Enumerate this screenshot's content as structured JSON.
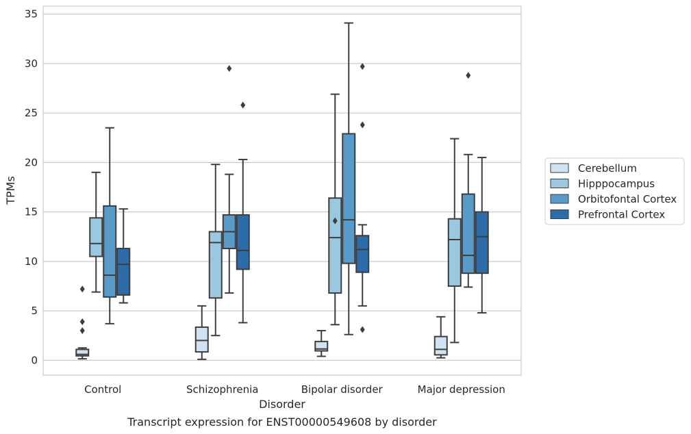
{
  "chart_data": {
    "type": "box",
    "title": "",
    "caption": "Transcript expression for ENST00000549608 by disorder",
    "xlabel": "Disorder",
    "ylabel": "TPMs",
    "ylim": [
      -1.5,
      35.8
    ],
    "yticks": [
      0,
      5,
      10,
      15,
      20,
      25,
      30,
      35
    ],
    "grid": true,
    "legend_position": "right",
    "categories": [
      "Control",
      "Schizophrenia",
      "Bipolar disorder",
      "Major depression"
    ],
    "series": [
      {
        "name": "Cerebellum",
        "color": "#d1e2f2",
        "boxes": [
          {
            "whislo": 0.15,
            "q1": 0.45,
            "med": 0.6,
            "q3": 1.1,
            "whishi": 1.25,
            "fliers": [
              3.0,
              3.9,
              7.2
            ]
          },
          {
            "whislo": 0.1,
            "q1": 0.85,
            "med": 2.0,
            "q3": 3.35,
            "whishi": 5.5,
            "fliers": []
          },
          {
            "whislo": 0.4,
            "q1": 0.95,
            "med": 1.15,
            "q3": 1.9,
            "whishi": 3.0,
            "fliers": []
          },
          {
            "whislo": 0.25,
            "q1": 0.55,
            "med": 1.1,
            "q3": 2.4,
            "whishi": 4.4,
            "fliers": []
          }
        ]
      },
      {
        "name": "Hipppocampus",
        "color": "#9ac8e0",
        "boxes": [
          {
            "whislo": 6.9,
            "q1": 10.5,
            "med": 11.8,
            "q3": 14.4,
            "whishi": 19.0,
            "fliers": []
          },
          {
            "whislo": 2.5,
            "q1": 6.3,
            "med": 11.9,
            "q3": 13.0,
            "whishi": 19.8,
            "fliers": []
          },
          {
            "whislo": 3.6,
            "q1": 6.8,
            "med": 12.4,
            "q3": 16.4,
            "whishi": 26.9,
            "fliers": [
              14.1
            ]
          },
          {
            "whislo": 1.8,
            "q1": 7.5,
            "med": 12.2,
            "q3": 14.3,
            "whishi": 22.4,
            "fliers": []
          }
        ]
      },
      {
        "name": "Orbitofontal Cortex",
        "color": "#5a9ac9",
        "boxes": [
          {
            "whislo": 3.7,
            "q1": 6.4,
            "med": 8.6,
            "q3": 15.6,
            "whishi": 23.5,
            "fliers": []
          },
          {
            "whislo": 6.8,
            "q1": 11.3,
            "med": 13.0,
            "q3": 14.7,
            "whishi": 18.8,
            "fliers": [
              29.5
            ]
          },
          {
            "whislo": 2.6,
            "q1": 9.8,
            "med": 14.2,
            "q3": 22.9,
            "whishi": 34.1,
            "fliers": []
          },
          {
            "whislo": 7.4,
            "q1": 8.8,
            "med": 10.6,
            "q3": 16.8,
            "whishi": 20.8,
            "fliers": [
              28.8
            ]
          }
        ]
      },
      {
        "name": "Prefrontal Cortex",
        "color": "#2b6ca9",
        "boxes": [
          {
            "whislo": 5.8,
            "q1": 6.6,
            "med": 9.7,
            "q3": 11.3,
            "whishi": 15.3,
            "fliers": []
          },
          {
            "whislo": 3.8,
            "q1": 9.2,
            "med": 11.1,
            "q3": 14.7,
            "whishi": 20.3,
            "fliers": [
              25.8
            ]
          },
          {
            "whislo": 5.5,
            "q1": 8.9,
            "med": 11.2,
            "q3": 12.6,
            "whishi": 13.7,
            "fliers": [
              3.1,
              23.8,
              29.7
            ]
          },
          {
            "whislo": 4.8,
            "q1": 8.8,
            "med": 12.5,
            "q3": 15.0,
            "whishi": 20.5,
            "fliers": []
          }
        ]
      }
    ]
  }
}
